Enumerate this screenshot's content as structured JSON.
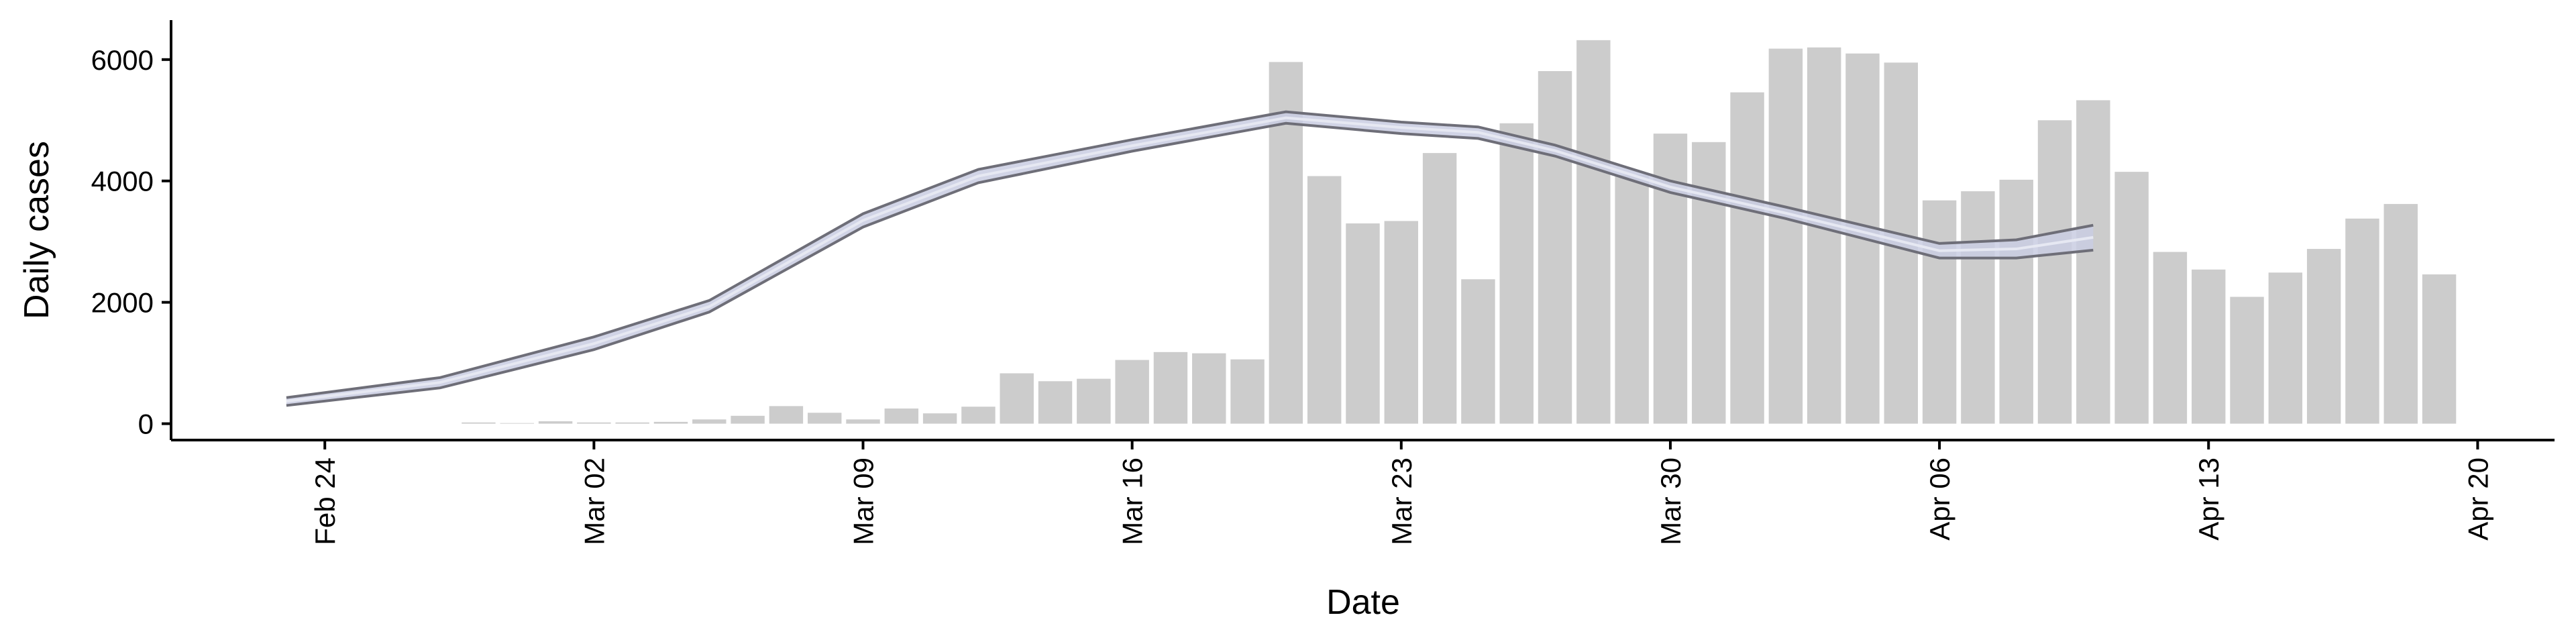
{
  "chart_data": {
    "type": "bar",
    "x_label": "Date",
    "y_label": "Daily cases",
    "x": [
      "Feb 28",
      "Feb 29",
      "Mar 01",
      "Mar 02",
      "Mar 03",
      "Mar 04",
      "Mar 05",
      "Mar 06",
      "Mar 07",
      "Mar 08",
      "Mar 09",
      "Mar 10",
      "Mar 11",
      "Mar 12",
      "Mar 13",
      "Mar 14",
      "Mar 15",
      "Mar 16",
      "Mar 17",
      "Mar 18",
      "Mar 19",
      "Mar 20",
      "Mar 21",
      "Mar 22",
      "Mar 23",
      "Mar 24",
      "Mar 25",
      "Mar 26",
      "Mar 27",
      "Mar 28",
      "Mar 29",
      "Mar 30",
      "Mar 31",
      "Apr 01",
      "Apr 02",
      "Apr 03",
      "Apr 04",
      "Apr 05",
      "Apr 06",
      "Apr 07",
      "Apr 08",
      "Apr 09",
      "Apr 10",
      "Apr 11",
      "Apr 12",
      "Apr 13",
      "Apr 14",
      "Apr 15",
      "Apr 16",
      "Apr 17",
      "Apr 18",
      "Apr 19"
    ],
    "values": [
      20,
      10,
      40,
      20,
      20,
      30,
      70,
      130,
      290,
      180,
      70,
      250,
      170,
      280,
      830,
      700,
      740,
      1050,
      1180,
      1160,
      1060,
      5960,
      4080,
      3300,
      3340,
      4460,
      2380,
      4950,
      5810,
      6320,
      4100,
      4780,
      4640,
      5460,
      6180,
      6200,
      6100,
      5950,
      3680,
      3830,
      4020,
      5000,
      5330,
      4150,
      2830,
      2540,
      2090,
      2490,
      2880,
      3380,
      3620,
      2460
    ],
    "color": "#cccccc",
    "xlim": [
      "Feb 20",
      "Apr 22"
    ],
    "xticks": [
      "Feb 24",
      "Mar 02",
      "Mar 09",
      "Mar 16",
      "Mar 23",
      "Mar 30",
      "Apr 06",
      "Apr 13",
      "Apr 20"
    ],
    "ylim": [
      -270,
      6650
    ],
    "yticks": [
      0,
      2000,
      4000,
      6000
    ],
    "smooth": {
      "x": [
        "Feb 23",
        "Feb 27",
        "Mar 02",
        "Mar 05",
        "Mar 09",
        "Mar 12",
        "Mar 16",
        "Mar 20",
        "Mar 23",
        "Mar 25",
        "Mar 27",
        "Mar 30",
        "Apr 02",
        "Apr 06",
        "Apr 08",
        "Apr 10"
      ],
      "values": [
        370,
        680,
        1320,
        1930,
        3350,
        4080,
        4580,
        5040,
        4880,
        4800,
        4500,
        3900,
        3470,
        2850,
        2880,
        3070
      ],
      "lower": [
        300,
        590,
        1220,
        1840,
        3240,
        3970,
        4490,
        4950,
        4780,
        4700,
        4410,
        3810,
        3380,
        2730,
        2730,
        2860
      ],
      "upper": [
        430,
        760,
        1430,
        2030,
        3460,
        4190,
        4680,
        5140,
        4970,
        4890,
        4590,
        4000,
        3570,
        2970,
        3030,
        3270
      ],
      "color": "#6e6e78",
      "fill": "#c9cde2"
    }
  }
}
